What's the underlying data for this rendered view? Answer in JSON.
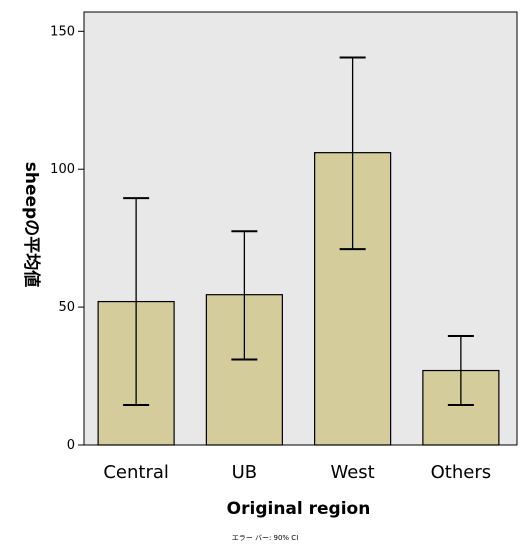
{
  "chart_data": {
    "type": "bar",
    "categories": [
      "Central",
      "UB",
      "West",
      "Others"
    ],
    "values": [
      52,
      54.5,
      106,
      27
    ],
    "error_bars": {
      "lower": [
        14.5,
        31,
        71,
        14.5
      ],
      "upper": [
        89.5,
        77.5,
        140.5,
        39.5
      ]
    },
    "xlabel": "Original region",
    "ylabel": "sheepの平均値",
    "ylim": [
      0,
      157
    ],
    "yticks": [
      "0",
      "50",
      "100",
      "150"
    ],
    "ytick_values": [
      0,
      50,
      100,
      150
    ],
    "grid": false,
    "footnote": "エラー バー: 90% CI",
    "colors": {
      "plot_background": "#e8e8e8",
      "bar_fill": "#d4cc9a",
      "bar_stroke": "#000000"
    }
  }
}
